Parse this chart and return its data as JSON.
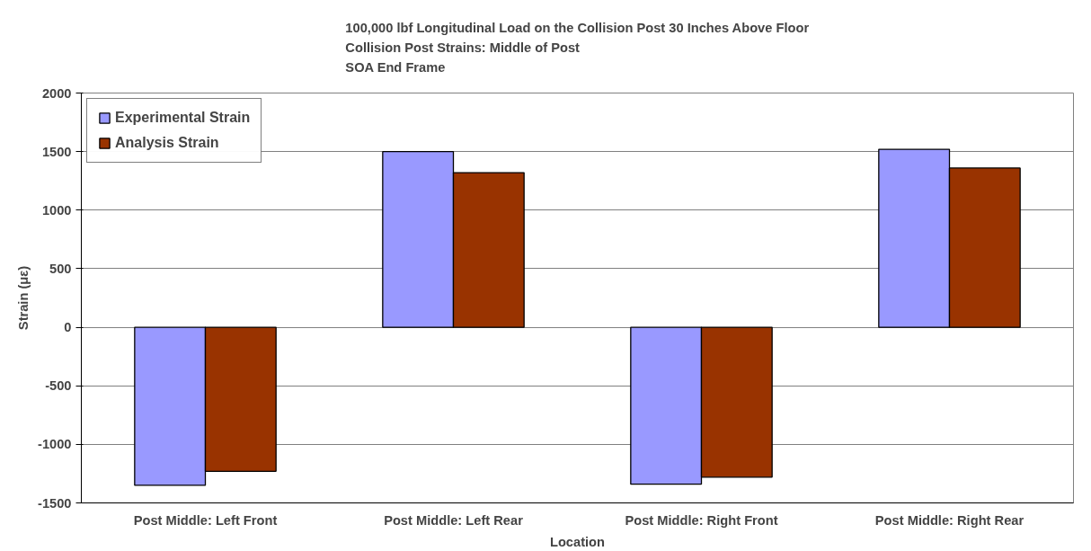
{
  "chart_data": {
    "type": "bar",
    "title": "100,000 lbf Longitudinal Load on the Collision Post 30 Inches Above Floor\nCollision Post Strains: Middle of Post\nSOA End Frame",
    "xlabel": "Location",
    "ylabel": "Strain (με)",
    "categories": [
      "Post Middle: Left Front",
      "Post Middle: Left Rear",
      "Post Middle: Right Front",
      "Post Middle: Right Rear"
    ],
    "series": [
      {
        "name": "Experimental Strain",
        "color": "#9999ff",
        "values": [
          -1350,
          1500,
          -1340,
          1520
        ]
      },
      {
        "name": "Analysis Strain",
        "color": "#993300",
        "values": [
          -1230,
          1320,
          -1280,
          1360
        ]
      }
    ],
    "ylim": [
      -1500,
      2000
    ],
    "yticks": [
      -1500,
      -1000,
      -500,
      0,
      500,
      1000,
      1500,
      2000
    ],
    "grid": "y",
    "legend": "top left"
  }
}
